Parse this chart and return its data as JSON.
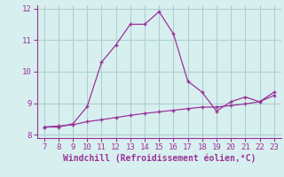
{
  "x": [
    7,
    8,
    9,
    10,
    11,
    12,
    13,
    14,
    15,
    16,
    17,
    18,
    19,
    20,
    21,
    22,
    23
  ],
  "y_windchill": [
    8.25,
    8.25,
    8.35,
    8.9,
    10.3,
    10.85,
    11.5,
    11.5,
    11.9,
    11.2,
    9.7,
    9.35,
    8.75,
    9.05,
    9.2,
    9.05,
    9.35
  ],
  "y_reference": [
    8.25,
    8.28,
    8.32,
    8.42,
    8.48,
    8.55,
    8.62,
    8.68,
    8.73,
    8.78,
    8.83,
    8.88,
    8.88,
    8.93,
    8.98,
    9.05,
    9.25
  ],
  "color": "#993399",
  "background_color": "#d8efef",
  "grid_color": "#aed0d0",
  "ylim": [
    7.9,
    12.1
  ],
  "xlim": [
    6.5,
    23.5
  ],
  "yticks": [
    8,
    9,
    10,
    11,
    12
  ],
  "xticks": [
    7,
    8,
    9,
    10,
    11,
    12,
    13,
    14,
    15,
    16,
    17,
    18,
    19,
    20,
    21,
    22,
    23
  ],
  "xlabel": "Windchill (Refroidissement éolien,°C)",
  "xlabel_fontsize": 7.0,
  "tick_fontsize": 6.5,
  "marker": "+"
}
